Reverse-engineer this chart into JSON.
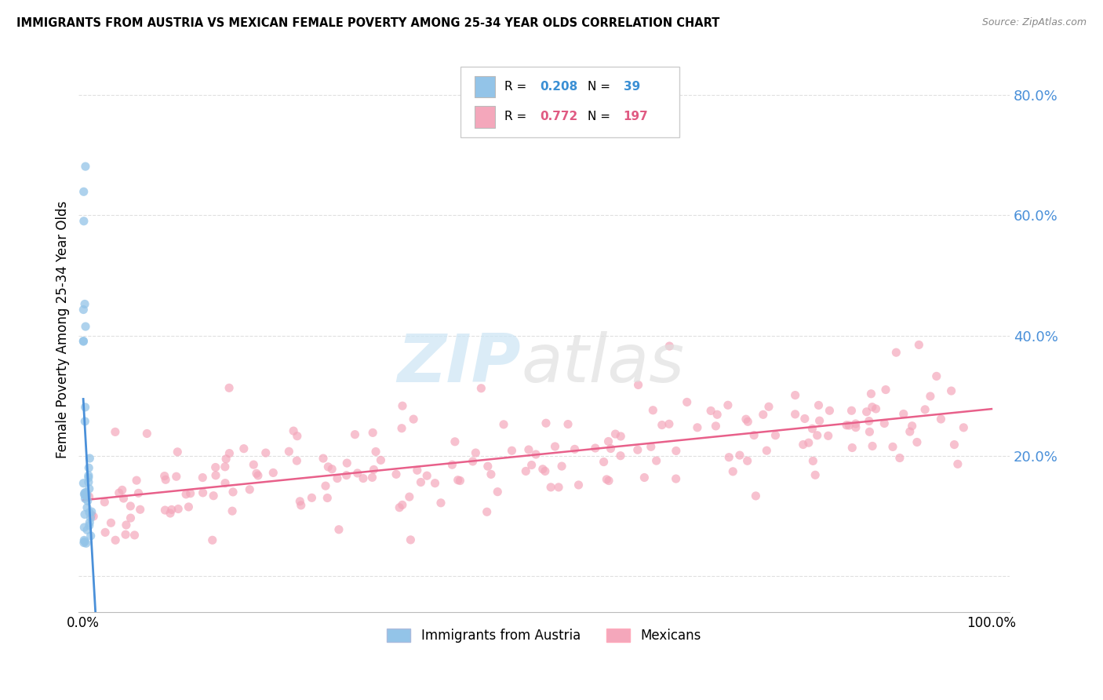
{
  "title": "IMMIGRANTS FROM AUSTRIA VS MEXICAN FEMALE POVERTY AMONG 25-34 YEAR OLDS CORRELATION CHART",
  "source": "Source: ZipAtlas.com",
  "ylabel": "Female Poverty Among 25-34 Year Olds",
  "legend_label1": "Immigrants from Austria",
  "legend_label2": "Mexicans",
  "blue_color": "#93c4e8",
  "blue_edge_color": "#93c4e8",
  "pink_color": "#f4a7bb",
  "pink_edge_color": "#f4a7bb",
  "blue_line_color": "#4a90d9",
  "pink_line_color": "#e8608a",
  "ytick_color": "#4a90d9",
  "r_blue": 0.208,
  "n_blue": 39,
  "r_pink": 0.772,
  "n_pink": 197,
  "background_color": "#ffffff",
  "grid_color": "#dddddd",
  "watermark_zip_color": "#cce5f5",
  "watermark_atlas_color": "#e0e0e0",
  "xlim_min": -0.005,
  "xlim_max": 1.02,
  "ylim_min": -0.06,
  "ylim_max": 0.88,
  "yticks": [
    0.0,
    0.2,
    0.4,
    0.6,
    0.8
  ],
  "ytick_labels": [
    "",
    "20.0%",
    "40.0%",
    "60.0%",
    "80.0%"
  ],
  "xticks": [
    0.0,
    1.0
  ],
  "xtick_labels": [
    "0.0%",
    "100.0%"
  ]
}
